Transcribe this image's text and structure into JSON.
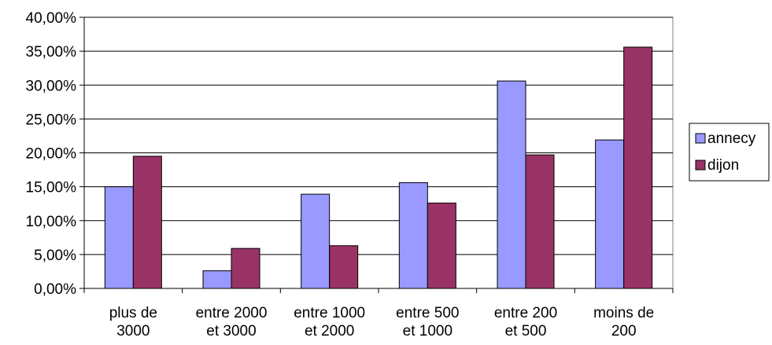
{
  "chart_data": {
    "type": "bar",
    "title": "",
    "xlabel": "",
    "ylabel": "",
    "ylim": [
      0,
      40
    ],
    "yticks": [
      0,
      5,
      10,
      15,
      20,
      25,
      30,
      35,
      40
    ],
    "ytick_labels": [
      "0,00%",
      "5,00%",
      "10,00%",
      "15,00%",
      "20,00%",
      "25,00%",
      "30,00%",
      "35,00%",
      "40,00%"
    ],
    "grid": true,
    "legend_position": "right",
    "categories": [
      [
        "plus de",
        "3000"
      ],
      [
        "entre 2000",
        "et 3000"
      ],
      [
        "entre 1000",
        "et 2000"
      ],
      [
        "entre 500",
        "et 1000"
      ],
      [
        "entre 200",
        "et 500"
      ],
      [
        "moins de",
        "200"
      ]
    ],
    "series": [
      {
        "name": "annecy",
        "color": "#9999ff",
        "values": [
          15.0,
          2.6,
          13.9,
          15.6,
          30.6,
          21.9
        ]
      },
      {
        "name": "dijon",
        "color": "#993366",
        "values": [
          19.5,
          5.9,
          6.3,
          12.6,
          19.7,
          35.6
        ]
      }
    ]
  }
}
